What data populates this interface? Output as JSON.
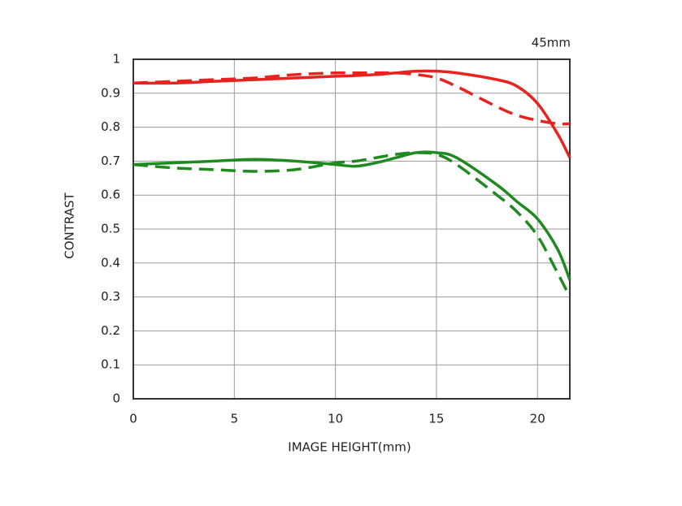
{
  "chart_data": {
    "type": "line",
    "annotation": "45mm",
    "x_label": "IMAGE HEIGHT(mm)",
    "y_label": "CONTRAST",
    "x": [
      0,
      2,
      4,
      6,
      8,
      10,
      11,
      12,
      13,
      14,
      15,
      16,
      18,
      19,
      20,
      21,
      21.6
    ],
    "series": [
      {
        "color": "#e8231f",
        "dash": false,
        "values": [
          0.93,
          0.93,
          0.935,
          0.94,
          0.945,
          0.95,
          0.952,
          0.955,
          0.96,
          0.965,
          0.965,
          0.96,
          0.94,
          0.92,
          0.87,
          0.78,
          0.71
        ]
      },
      {
        "color": "#e8231f",
        "dash": true,
        "values": [
          0.93,
          0.935,
          0.94,
          0.945,
          0.955,
          0.96,
          0.96,
          0.96,
          0.96,
          0.955,
          0.945,
          0.92,
          0.86,
          0.835,
          0.82,
          0.81,
          0.81
        ]
      },
      {
        "color": "#1f8a1f",
        "dash": false,
        "values": [
          0.69,
          0.695,
          0.7,
          0.705,
          0.7,
          0.69,
          0.685,
          0.695,
          0.71,
          0.725,
          0.725,
          0.71,
          0.63,
          0.58,
          0.53,
          0.44,
          0.35
        ]
      },
      {
        "color": "#1f8a1f",
        "dash": true,
        "values": [
          0.69,
          0.68,
          0.675,
          0.67,
          0.675,
          0.695,
          0.7,
          0.71,
          0.72,
          0.725,
          0.72,
          0.69,
          0.6,
          0.55,
          0.48,
          0.37,
          0.3
        ]
      }
    ],
    "xlim": [
      0,
      21.6
    ],
    "xticks": [
      0,
      5,
      10,
      15,
      20
    ],
    "ylim": [
      0,
      1
    ],
    "yticks": [
      0,
      0.1,
      0.2,
      0.3,
      0.4,
      0.5,
      0.6,
      0.7,
      0.8,
      0.9,
      1
    ],
    "grid": true
  }
}
